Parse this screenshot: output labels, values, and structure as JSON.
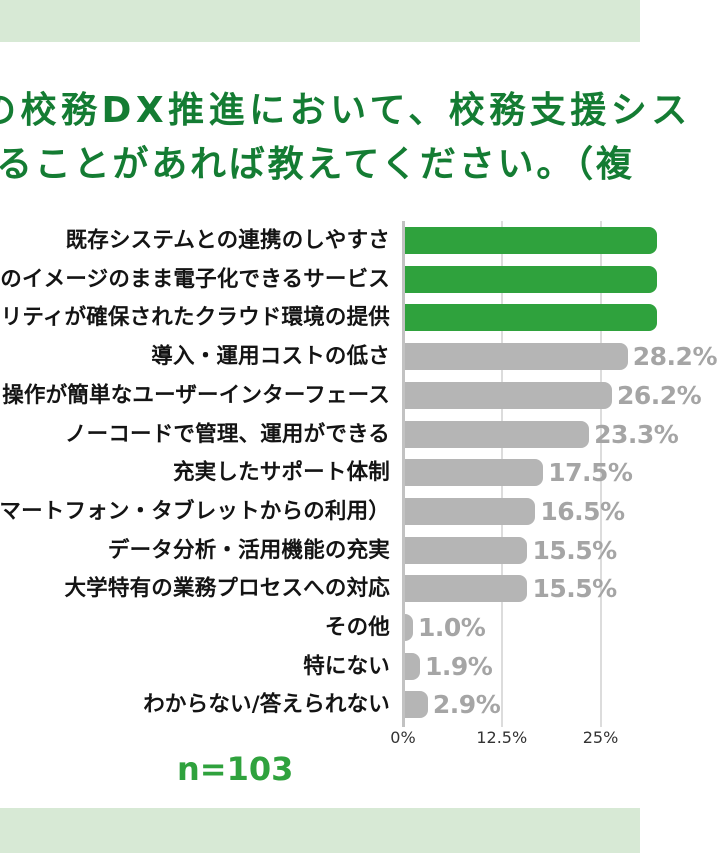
{
  "title": {
    "line1": "の校務DX推進において、校務支援シス",
    "line2": "ることがあれば教えてください。（複",
    "color": "#147c33"
  },
  "sample_label": "n=103",
  "bands": {
    "color": "#d7e9d5"
  },
  "chart_data": {
    "type": "bar",
    "orientation": "horizontal",
    "title": "",
    "xlabel": "",
    "ylabel": "",
    "grid": true,
    "xlim_visible_percent": [
      0,
      30
    ],
    "ticks": [
      {
        "label": "0%",
        "percent": 0
      },
      {
        "label": "12.5%",
        "percent": 12.5
      },
      {
        "label": "25%",
        "percent": 25
      }
    ],
    "bars": [
      {
        "label": "既存システムとの連携のしやすさ",
        "value_percent": null,
        "value_label": "",
        "color": "green",
        "cutoff": true
      },
      {
        "label": "のイメージのまま電子化できるサービス",
        "value_percent": null,
        "value_label": "",
        "color": "green",
        "cutoff": true
      },
      {
        "label": "リティが確保されたクラウド環境の提供",
        "value_percent": null,
        "value_label": "",
        "color": "green",
        "cutoff": true
      },
      {
        "label": "導入・運用コストの低さ",
        "value_percent": 28.2,
        "value_label": "28.2%",
        "color": "gray",
        "cutoff": false
      },
      {
        "label": "操作が簡単なユーザーインターフェース",
        "value_percent": 26.2,
        "value_label": "26.2%",
        "color": "gray",
        "cutoff": false
      },
      {
        "label": "ノーコードで管理、運用ができる",
        "value_percent": 23.3,
        "value_label": "23.3%",
        "color": "gray",
        "cutoff": false
      },
      {
        "label": "充実したサポート体制",
        "value_percent": 17.5,
        "value_label": "17.5%",
        "color": "gray",
        "cutoff": false
      },
      {
        "label": "マートフォン・タブレットからの利用）",
        "value_percent": 16.5,
        "value_label": "16.5%",
        "color": "gray",
        "cutoff": false
      },
      {
        "label": "データ分析・活用機能の充実",
        "value_percent": 15.5,
        "value_label": "15.5%",
        "color": "gray",
        "cutoff": false
      },
      {
        "label": "大学特有の業務プロセスへの対応",
        "value_percent": 15.5,
        "value_label": "15.5%",
        "color": "gray",
        "cutoff": false
      },
      {
        "label": "その他",
        "value_percent": 1.0,
        "value_label": "1.0%",
        "color": "gray",
        "cutoff": false
      },
      {
        "label": "特にない",
        "value_percent": 1.9,
        "value_label": "1.9%",
        "color": "gray",
        "cutoff": false
      },
      {
        "label": "わからない/答えられない",
        "value_percent": 2.9,
        "value_label": "2.9%",
        "color": "gray",
        "cutoff": false
      }
    ],
    "colors": {
      "highlight_bar": "#2fa23d",
      "default_bar": "#b5b5b5",
      "value_text": "#a5a5a5",
      "category_text": "#141414",
      "tick_text": "#333333",
      "gridline": "#dcdcdc",
      "axis_line": "#c2c2c2"
    },
    "legend": null
  }
}
